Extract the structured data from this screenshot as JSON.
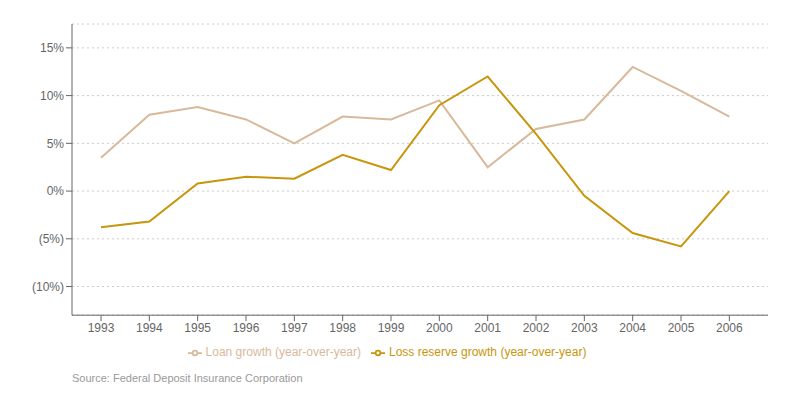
{
  "chart_data": {
    "type": "line",
    "x": [
      1993,
      1994,
      1995,
      1996,
      1997,
      1998,
      1999,
      2000,
      2001,
      2002,
      2003,
      2004,
      2005,
      2006
    ],
    "series": [
      {
        "name": "Loan growth (year-over-year)",
        "color": "#d9b99b",
        "values": [
          0.035,
          0.08,
          0.088,
          0.075,
          0.05,
          0.078,
          0.075,
          0.095,
          0.025,
          0.065,
          0.075,
          0.13,
          0.105,
          0.078
        ]
      },
      {
        "name": "Loss reserve growth (year-over-year)",
        "color": "#c8960c",
        "values": [
          -0.038,
          -0.032,
          0.008,
          0.015,
          0.013,
          0.038,
          0.022,
          0.09,
          0.12,
          0.06,
          -0.005,
          -0.044,
          -0.058,
          0.0
        ]
      }
    ],
    "xlim": [
      1992.4,
      2006.8
    ],
    "xticks": [
      1993,
      1994,
      1995,
      1996,
      1997,
      1998,
      1999,
      2000,
      2001,
      2002,
      2003,
      2004,
      2005,
      2006
    ],
    "ylim": [
      -0.13,
      0.175
    ],
    "yticks": [
      {
        "value": -0.1,
        "label": "(10%)"
      },
      {
        "value": -0.05,
        "label": "(5%)"
      },
      {
        "value": 0.0,
        "label": "0%"
      },
      {
        "value": 0.05,
        "label": "5%"
      },
      {
        "value": 0.1,
        "label": "10%"
      },
      {
        "value": 0.15,
        "label": "15%"
      }
    ],
    "grid": true,
    "legend": "bottom",
    "annotations": [
      "Source: Federal Deposit Insurance Corporation"
    ]
  }
}
